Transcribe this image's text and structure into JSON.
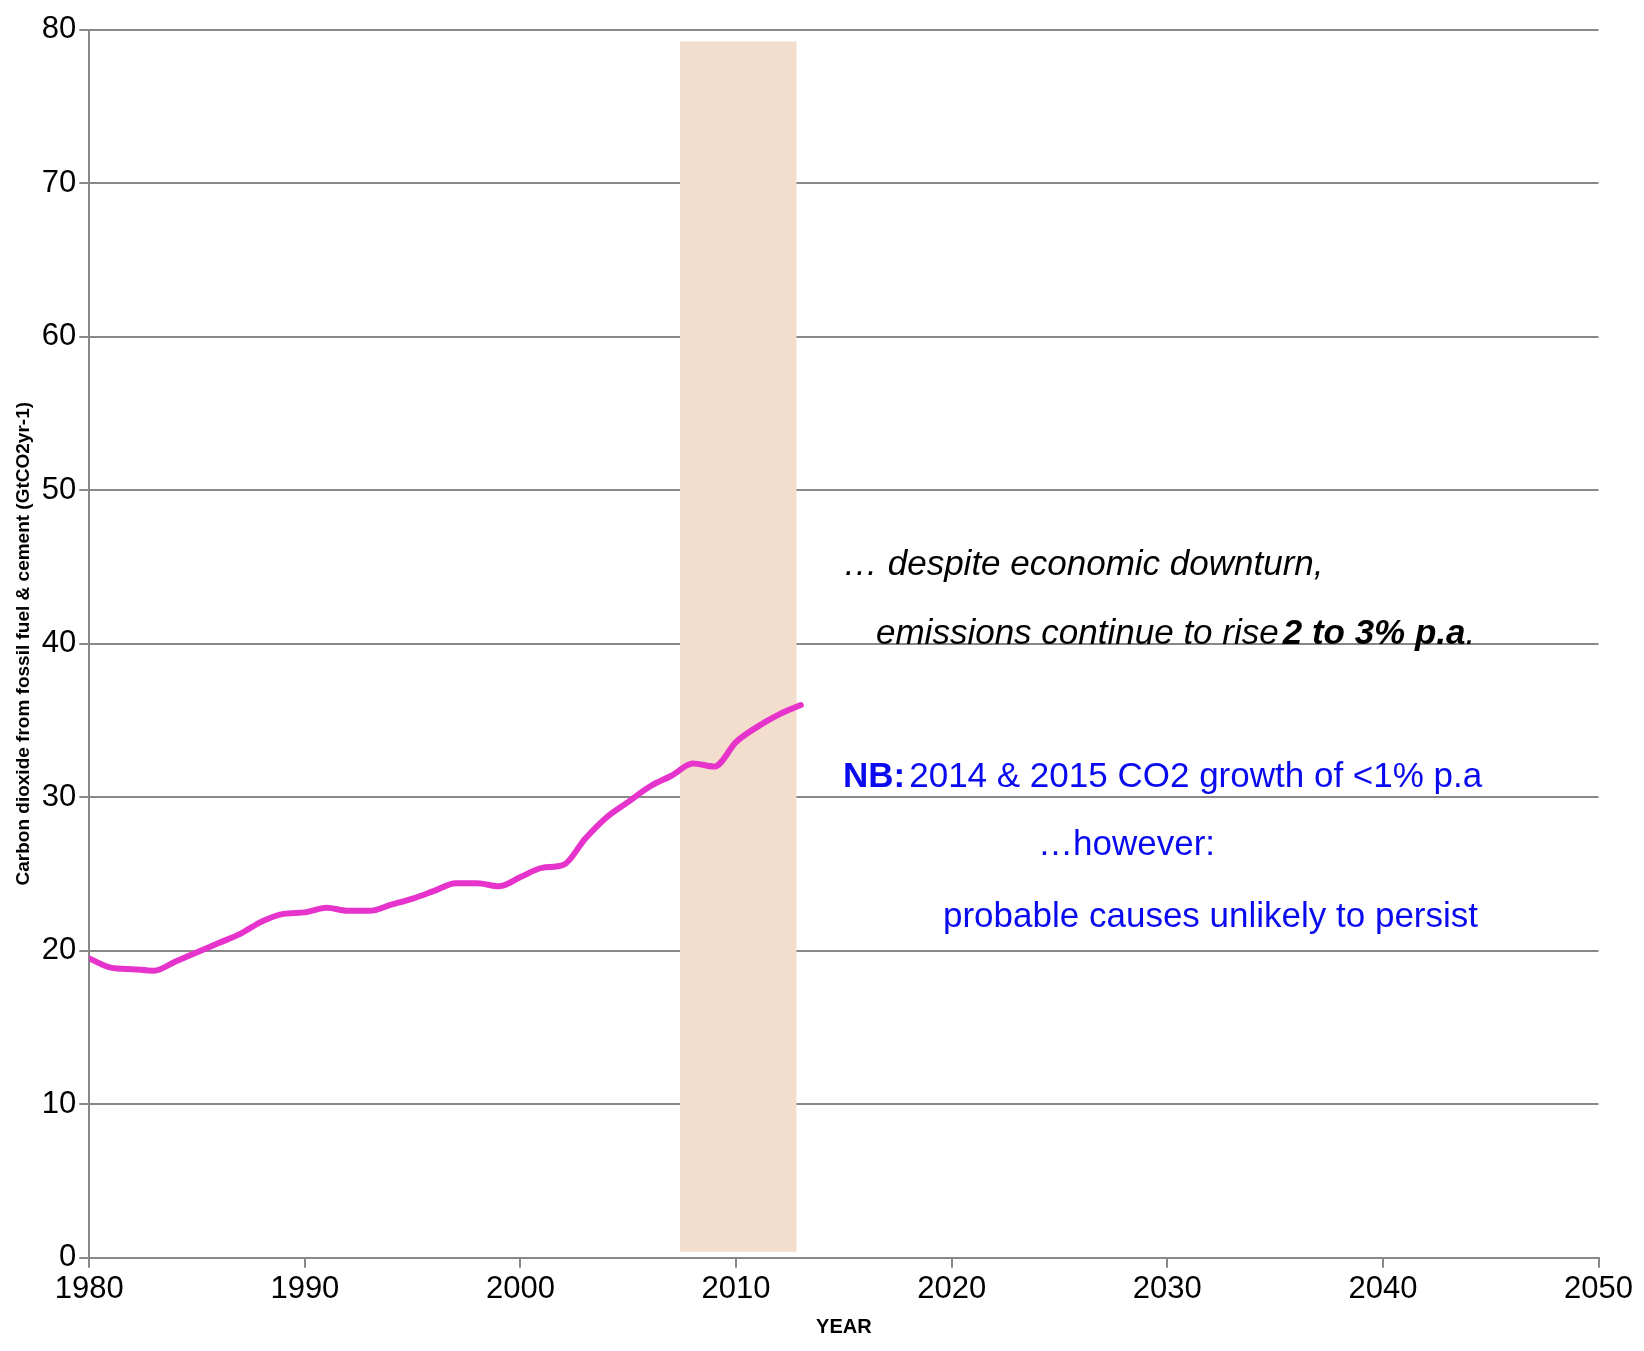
{
  "chart_data": {
    "type": "line",
    "xlabel": "YEAR",
    "ylabel": "Carbon dioxide from fossil fuel & cement (GtCO2yr-1)",
    "x": [
      1980,
      1981,
      1982,
      1983,
      1984,
      1985,
      1986,
      1987,
      1988,
      1989,
      1990,
      1991,
      1992,
      1993,
      1994,
      1995,
      1996,
      1997,
      1998,
      1999,
      2000,
      2001,
      2002,
      2003,
      2004,
      2005,
      2006,
      2007,
      2008,
      2009,
      2010,
      2011,
      2012,
      2013
    ],
    "series": [
      {
        "color": "#e633cc",
        "values": [
          19.5,
          18.9,
          18.8,
          18.7,
          19.3,
          19.9,
          20.5,
          21.1,
          21.9,
          22.4,
          22.5,
          22.8,
          22.6,
          22.6,
          23.0,
          23.4,
          23.9,
          24.4,
          24.4,
          24.2,
          24.8,
          25.4,
          25.6,
          27.3,
          28.7,
          29.7,
          30.7,
          31.4,
          32.2,
          32.0,
          33.6,
          34.6,
          35.4,
          36.0
        ]
      }
    ],
    "xlim": [
      1980,
      2050
    ],
    "xticks": [
      1980,
      1990,
      2000,
      2010,
      2020,
      2030,
      2040,
      2050
    ],
    "ylim": [
      0,
      80
    ],
    "yticks": [
      0,
      10,
      20,
      30,
      40,
      50,
      60,
      70,
      80
    ],
    "grid": "y",
    "legend": false,
    "marker": "none",
    "line_style": "solid",
    "bands": [
      {
        "axis": "x",
        "from": 2007.4,
        "to": 2012.8,
        "color": "#f3ddcc"
      }
    ],
    "annotations": [
      "… despite economic downturn,",
      "emissions continue to rise",
      "2 to 3% p.a",
      ".",
      "NB:",
      "2014 & 2015 CO2 growth of <1% p.a",
      "…however:",
      "probable causes unlikely to persist"
    ]
  }
}
